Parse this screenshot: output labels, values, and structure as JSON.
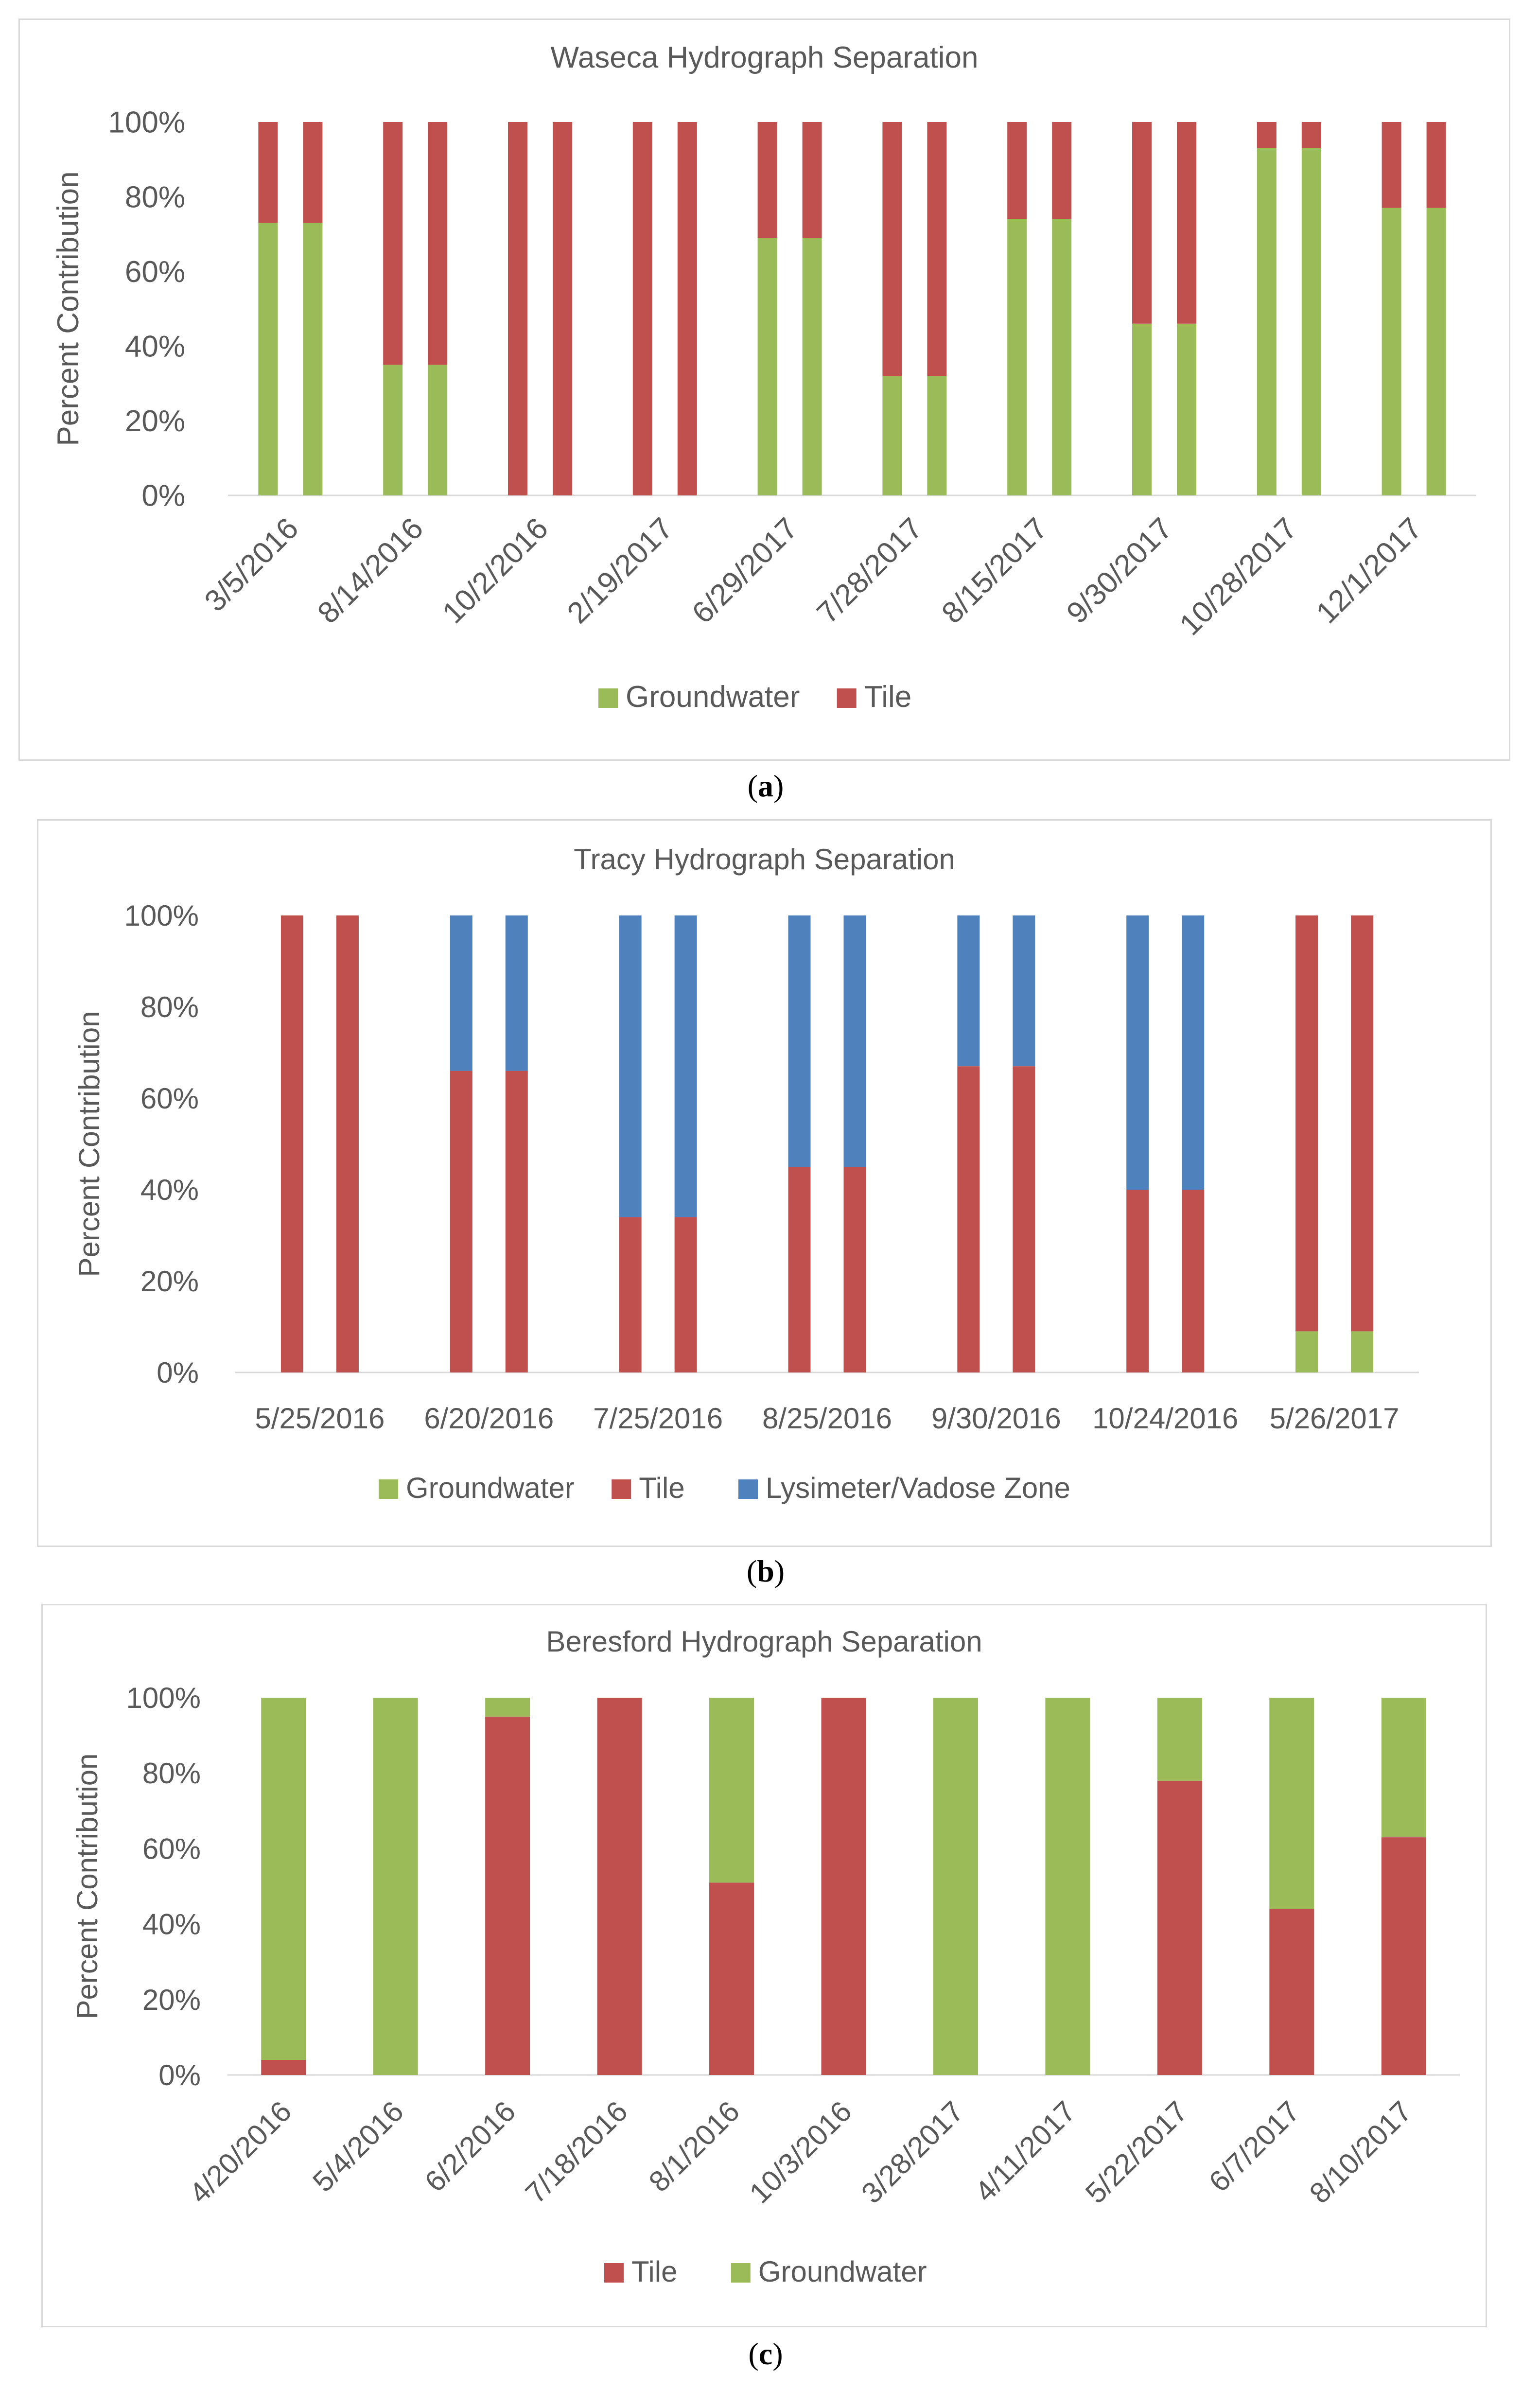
{
  "colors": {
    "groundwater": "#9bbb59",
    "tile": "#c0504d",
    "lysimeter": "#4f81bd",
    "axis": "#d9d9d9",
    "text": "#595959"
  },
  "captions": {
    "a": "a",
    "b": "b",
    "c": "c"
  },
  "chart_data": [
    {
      "type": "bar",
      "stacked": true,
      "title": "Waseca Hydrograph Separation",
      "ylabel": "Percent Contribution",
      "xlabel": "",
      "ylim": [
        0,
        100
      ],
      "yticks": [
        "0%",
        "20%",
        "40%",
        "60%",
        "80%",
        "100%"
      ],
      "grid": false,
      "legend": "bottom",
      "tick_rotation": -45,
      "categories": [
        "3/5/2016",
        "8/14/2016",
        "10/2/2016",
        "2/19/2017",
        "6/29/2017",
        "7/28/2017",
        "8/15/2017",
        "9/30/2017",
        "10/28/2017",
        "12/1/2017"
      ],
      "bars_per_category": 2,
      "series": [
        {
          "name": "Groundwater",
          "color": "#9bbb59",
          "values": [
            73,
            35,
            0,
            0,
            69,
            32,
            74,
            46,
            93,
            77
          ]
        },
        {
          "name": "Tile",
          "color": "#c0504d",
          "values": [
            27,
            65,
            100,
            100,
            31,
            68,
            26,
            54,
            7,
            23
          ]
        }
      ],
      "legend_entries": [
        "Groundwater",
        "Tile"
      ]
    },
    {
      "type": "bar",
      "stacked": true,
      "title": "Tracy Hydrograph Separation",
      "ylabel": "Percent Contribution",
      "xlabel": "",
      "ylim": [
        0,
        100
      ],
      "yticks": [
        "0%",
        "20%",
        "40%",
        "60%",
        "80%",
        "100%"
      ],
      "grid": false,
      "legend": "bottom",
      "tick_rotation": 0,
      "categories": [
        "5/25/2016",
        "6/20/2016",
        "7/25/2016",
        "8/25/2016",
        "9/30/2016",
        "10/24/2016",
        "5/26/2017"
      ],
      "bars_per_category": 2,
      "series": [
        {
          "name": "Groundwater",
          "color": "#9bbb59",
          "values": [
            0,
            0,
            0,
            0,
            0,
            0,
            9
          ]
        },
        {
          "name": "Tile",
          "color": "#c0504d",
          "values": [
            100,
            66,
            34,
            45,
            67,
            40,
            91
          ]
        },
        {
          "name": "Lysimeter/Vadose Zone",
          "color": "#4f81bd",
          "values": [
            0,
            34,
            66,
            55,
            33,
            60,
            0
          ]
        }
      ],
      "legend_entries": [
        "Groundwater",
        "Tile",
        "Lysimeter/Vadose Zone"
      ]
    },
    {
      "type": "bar",
      "stacked": true,
      "title": "Beresford Hydrograph Separation",
      "ylabel": "Percent Contribution",
      "xlabel": "",
      "ylim": [
        0,
        100
      ],
      "yticks": [
        "0%",
        "20%",
        "40%",
        "60%",
        "80%",
        "100%"
      ],
      "grid": false,
      "legend": "bottom",
      "tick_rotation": -45,
      "categories": [
        "4/20/2016",
        "5/4/2016",
        "6/2/2016",
        "7/18/2016",
        "8/1/2016",
        "10/3/2016",
        "3/28/2017",
        "4/11/2017",
        "5/22/2017",
        "6/7/2017",
        "8/10/2017"
      ],
      "bars_per_category": 1,
      "series": [
        {
          "name": "Tile",
          "color": "#c0504d",
          "values": [
            4,
            0,
            95,
            100,
            51,
            100,
            0,
            0,
            78,
            44,
            63
          ]
        },
        {
          "name": "Groundwater",
          "color": "#9bbb59",
          "values": [
            96,
            100,
            5,
            0,
            49,
            0,
            100,
            100,
            22,
            56,
            37
          ]
        }
      ],
      "legend_entries": [
        "Tile",
        "Groundwater"
      ]
    }
  ]
}
